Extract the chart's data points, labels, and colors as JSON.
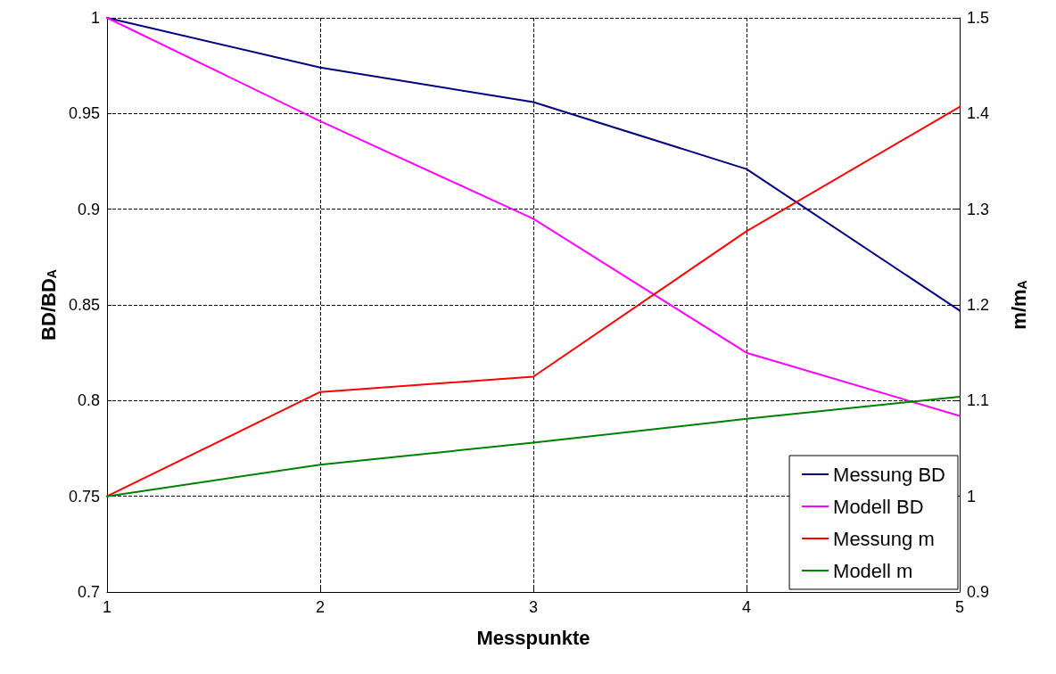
{
  "chart_data": {
    "type": "line",
    "xlabel": "Messpunkte",
    "ylabel": "BD/BD$_{A}$",
    "y2label": "m/m$_{A}$",
    "x": [
      1,
      2,
      3,
      4,
      5
    ],
    "xlim": [
      1,
      5
    ],
    "xticks": [
      1,
      2,
      3,
      4,
      5
    ],
    "ylim": [
      0.7,
      1
    ],
    "yticks": [
      0.7,
      0.75,
      0.8,
      0.85,
      0.9,
      0.95,
      1
    ],
    "y2lim": [
      0.9,
      1.5
    ],
    "y2ticks": [
      0.9,
      1,
      1.1,
      1.2,
      1.3,
      1.4,
      1.5
    ],
    "grid": true,
    "legend": "bottom right",
    "marker": "none",
    "line_style": "solid",
    "series": [
      {
        "name": "Messung BD",
        "color": "#000080",
        "values": [
          1,
          0.974,
          0.956,
          0.921,
          0.847
        ]
      },
      {
        "name": "Modell BD",
        "color": "#ff00ff",
        "values": [
          1,
          0.946,
          0.895,
          0.825,
          0.792
        ]
      },
      {
        "name": "Messung m",
        "color": "#ff0000",
        "axis": "y2",
        "values": [
          1,
          1.109,
          1.125,
          1.277,
          1.407
        ]
      },
      {
        "name": "Modell m",
        "color": "#008000",
        "axis": "y2",
        "values": [
          1,
          1.033,
          1.056,
          1.081,
          1.104
        ]
      }
    ]
  }
}
